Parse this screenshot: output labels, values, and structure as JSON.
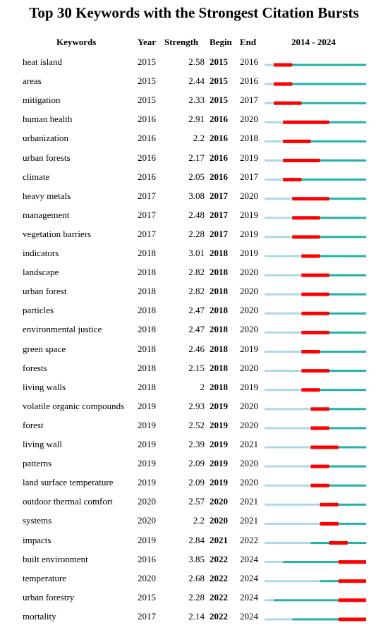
{
  "chart_data": {
    "type": "table",
    "title": "Top 30 Keywords with the Strongest Citation Bursts",
    "columns": [
      "Keywords",
      "Year",
      "Strength",
      "Begin",
      "End",
      "2014 - 2024"
    ],
    "range_start": 2014,
    "range_end": 2024,
    "colors": {
      "pre": "#add8e6",
      "active": "#20b2aa",
      "burst": "#ff0000"
    },
    "rows": [
      {
        "keyword": "heat island",
        "year": "2015",
        "strength": "2.58",
        "begin": "2015",
        "end": "2016"
      },
      {
        "keyword": "areas",
        "year": "2015",
        "strength": "2.44",
        "begin": "2015",
        "end": "2016"
      },
      {
        "keyword": "mitigation",
        "year": "2015",
        "strength": "2.33",
        "begin": "2015",
        "end": "2017"
      },
      {
        "keyword": "human health",
        "year": "2016",
        "strength": "2.91",
        "begin": "2016",
        "end": "2020"
      },
      {
        "keyword": "urbanization",
        "year": "2016",
        "strength": "2.2",
        "begin": "2016",
        "end": "2018"
      },
      {
        "keyword": "urban forests",
        "year": "2016",
        "strength": "2.17",
        "begin": "2016",
        "end": "2019"
      },
      {
        "keyword": "climate",
        "year": "2016",
        "strength": "2.05",
        "begin": "2016",
        "end": "2017"
      },
      {
        "keyword": "heavy metals",
        "year": "2017",
        "strength": "3.08",
        "begin": "2017",
        "end": "2020"
      },
      {
        "keyword": "management",
        "year": "2017",
        "strength": "2.48",
        "begin": "2017",
        "end": "2019"
      },
      {
        "keyword": "vegetation barriers",
        "year": "2017",
        "strength": "2.28",
        "begin": "2017",
        "end": "2019"
      },
      {
        "keyword": "indicators",
        "year": "2018",
        "strength": "3.01",
        "begin": "2018",
        "end": "2019"
      },
      {
        "keyword": "landscape",
        "year": "2018",
        "strength": "2.82",
        "begin": "2018",
        "end": "2020"
      },
      {
        "keyword": "urban forest",
        "year": "2018",
        "strength": "2.82",
        "begin": "2018",
        "end": "2020"
      },
      {
        "keyword": "particles",
        "year": "2018",
        "strength": "2.47",
        "begin": "2018",
        "end": "2020"
      },
      {
        "keyword": "environmental justice",
        "year": "2018",
        "strength": "2.47",
        "begin": "2018",
        "end": "2020"
      },
      {
        "keyword": "green space",
        "year": "2018",
        "strength": "2.46",
        "begin": "2018",
        "end": "2019"
      },
      {
        "keyword": "forests",
        "year": "2018",
        "strength": "2.15",
        "begin": "2018",
        "end": "2020"
      },
      {
        "keyword": "living walls",
        "year": "2018",
        "strength": "2",
        "begin": "2018",
        "end": "2019"
      },
      {
        "keyword": "volatile organic compounds",
        "year": "2019",
        "strength": "2.93",
        "begin": "2019",
        "end": "2020"
      },
      {
        "keyword": "forest",
        "year": "2019",
        "strength": "2.52",
        "begin": "2019",
        "end": "2020"
      },
      {
        "keyword": "living wall",
        "year": "2019",
        "strength": "2.39",
        "begin": "2019",
        "end": "2021"
      },
      {
        "keyword": "patterns",
        "year": "2019",
        "strength": "2.09",
        "begin": "2019",
        "end": "2020"
      },
      {
        "keyword": "land surface temperature",
        "year": "2019",
        "strength": "2.09",
        "begin": "2019",
        "end": "2020"
      },
      {
        "keyword": "outdoor thermal comfort",
        "year": "2020",
        "strength": "2.57",
        "begin": "2020",
        "end": "2021"
      },
      {
        "keyword": "systems",
        "year": "2020",
        "strength": "2.2",
        "begin": "2020",
        "end": "2021"
      },
      {
        "keyword": "impacts",
        "year": "2019",
        "strength": "2.84",
        "begin": "2021",
        "end": "2022"
      },
      {
        "keyword": "built environment",
        "year": "2016",
        "strength": "3.85",
        "begin": "2022",
        "end": "2024"
      },
      {
        "keyword": "temperature",
        "year": "2020",
        "strength": "2.68",
        "begin": "2022",
        "end": "2024"
      },
      {
        "keyword": "urban forestry",
        "year": "2015",
        "strength": "2.28",
        "begin": "2022",
        "end": "2024"
      },
      {
        "keyword": "mortality",
        "year": "2017",
        "strength": "2.14",
        "begin": "2022",
        "end": "2024"
      }
    ]
  }
}
